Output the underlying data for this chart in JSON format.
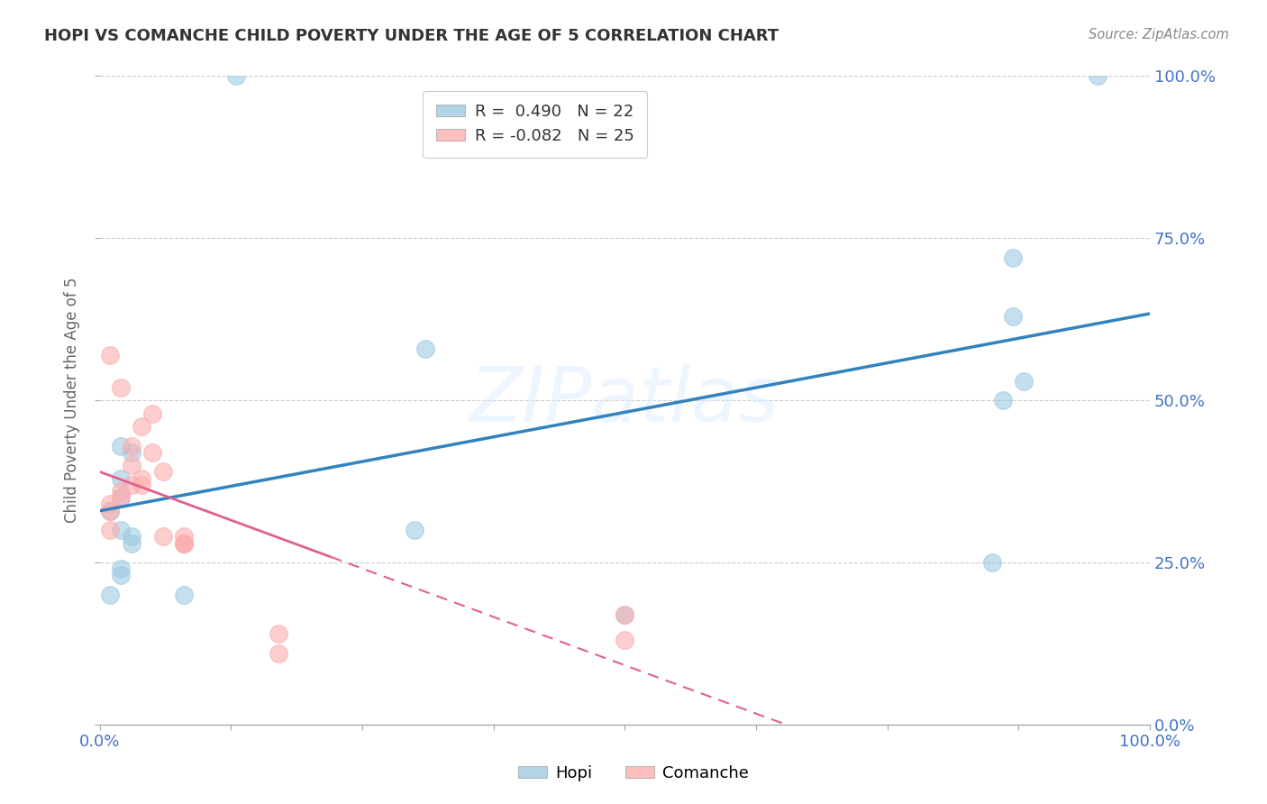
{
  "title": "HOPI VS COMANCHE CHILD POVERTY UNDER THE AGE OF 5 CORRELATION CHART",
  "source": "Source: ZipAtlas.com",
  "ylabel": "Child Poverty Under the Age of 5",
  "xlim": [
    0,
    1
  ],
  "ylim": [
    0,
    1
  ],
  "hopi_R": 0.49,
  "hopi_N": 22,
  "comanche_R": -0.082,
  "comanche_N": 25,
  "hopi_color": "#9ecae1",
  "comanche_color": "#fcaeae",
  "hopi_line_color": "#3182bd",
  "comanche_line_color": "#e06090",
  "watermark_text": "ZIPatlas",
  "hopi_x": [
    0.13,
    0.95,
    0.31,
    0.02,
    0.03,
    0.02,
    0.02,
    0.01,
    0.02,
    0.03,
    0.08,
    0.87,
    0.87,
    0.88,
    0.86,
    0.3,
    0.02,
    0.02,
    0.01,
    0.5,
    0.85,
    0.03
  ],
  "hopi_y": [
    1.0,
    1.0,
    0.58,
    0.43,
    0.42,
    0.38,
    0.35,
    0.33,
    0.3,
    0.28,
    0.2,
    0.72,
    0.63,
    0.53,
    0.5,
    0.3,
    0.24,
    0.23,
    0.2,
    0.17,
    0.25,
    0.29
  ],
  "comanche_x": [
    0.01,
    0.02,
    0.05,
    0.04,
    0.03,
    0.05,
    0.03,
    0.06,
    0.04,
    0.04,
    0.03,
    0.02,
    0.02,
    0.01,
    0.01,
    0.01,
    0.06,
    0.08,
    0.08,
    0.08,
    0.17,
    0.17,
    0.5,
    0.5,
    0.08
  ],
  "comanche_y": [
    0.57,
    0.52,
    0.48,
    0.46,
    0.43,
    0.42,
    0.4,
    0.39,
    0.38,
    0.37,
    0.37,
    0.36,
    0.35,
    0.34,
    0.33,
    0.3,
    0.29,
    0.29,
    0.28,
    0.28,
    0.11,
    0.14,
    0.17,
    0.13,
    0.28
  ],
  "background_color": "#ffffff",
  "grid_color": "#cccccc",
  "tick_color": "#4472c4",
  "title_color": "#333333",
  "ylabel_color": "#666666"
}
